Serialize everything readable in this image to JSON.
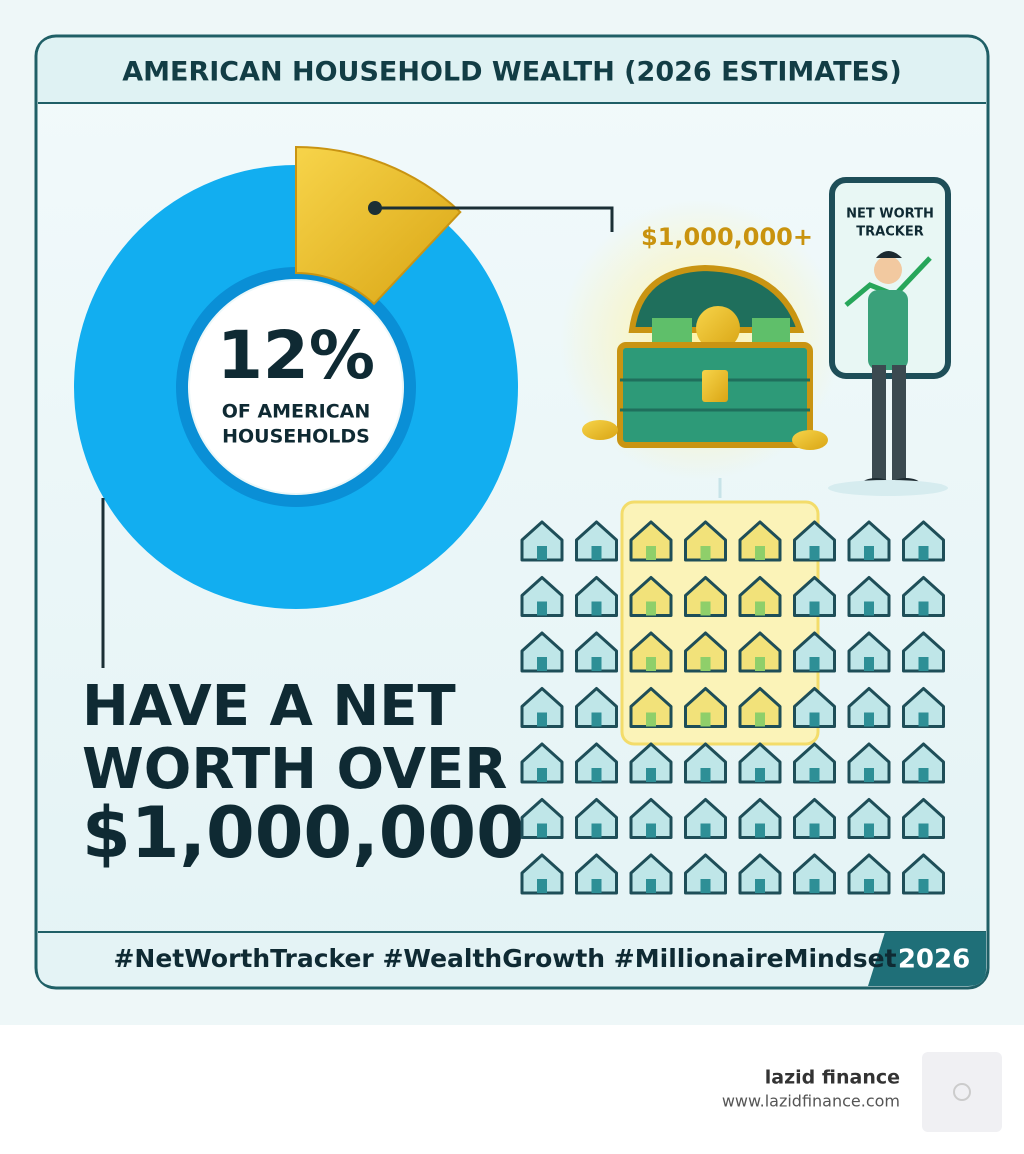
{
  "header": {
    "title": "AMERICAN HOUSEHOLD WEALTH (2026 ESTIMATES)"
  },
  "donut": {
    "value": 12,
    "value_label": "12%",
    "caption": [
      "OF AMERICAN",
      "HOUSEHOLDS"
    ]
  },
  "headline": [
    "HAVE A NET",
    "WORTH OVER",
    "$1,000,000"
  ],
  "treasure": {
    "label": "$1,000,000+"
  },
  "phone": {
    "label": [
      "NET WORTH",
      "TRACKER"
    ]
  },
  "footer": {
    "hashtags": "#NetWorthTracker #WealthGrowth #MillionaireMindset",
    "year": "2026"
  },
  "brand": {
    "name": "lazid finance",
    "url": "www.lazidfinance.com"
  }
}
